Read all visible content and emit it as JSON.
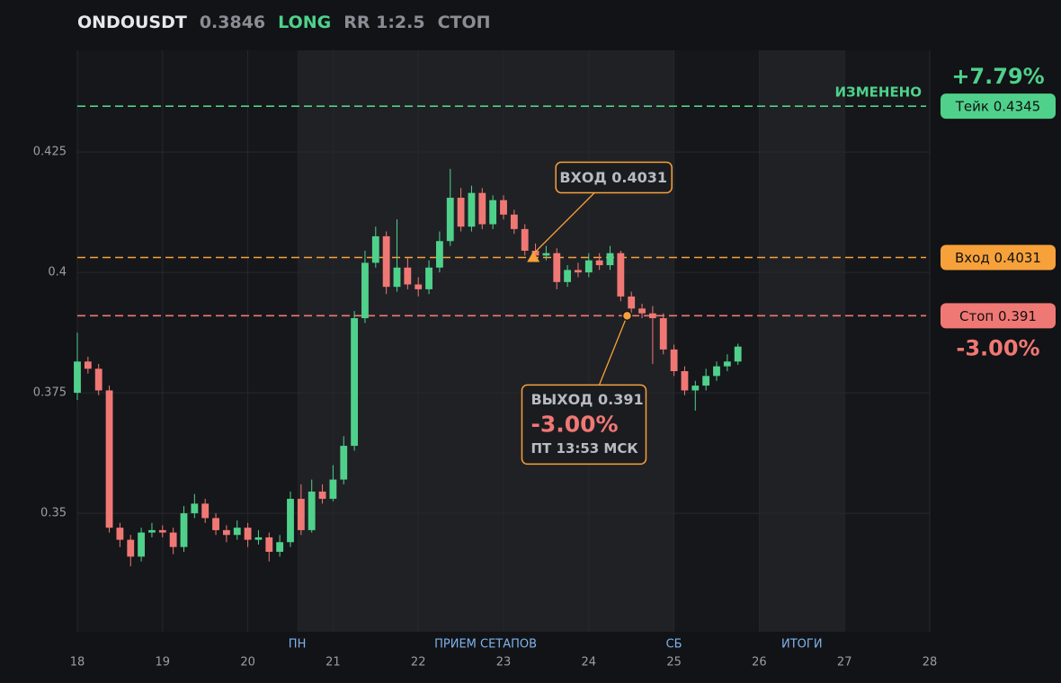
{
  "chart_data": {
    "type": "candlestick",
    "header": {
      "symbol": "ONDOUSDT",
      "price": "0.3846",
      "side": "LONG",
      "rr": "RR 1:2.5",
      "status": "СТОП"
    },
    "x": [
      18.0,
      18.125,
      18.25,
      18.375,
      18.5,
      18.625,
      18.75,
      18.875,
      19.0,
      19.125,
      19.25,
      19.375,
      19.5,
      19.625,
      19.75,
      19.875,
      20.0,
      20.125,
      20.25,
      20.375,
      20.5,
      20.625,
      20.75,
      20.875,
      21.0,
      21.125,
      21.25,
      21.375,
      21.5,
      21.625,
      21.75,
      21.875,
      22.0,
      22.125,
      22.25,
      22.375,
      22.5,
      22.625,
      22.75,
      22.875,
      23.0,
      23.125,
      23.25,
      23.375,
      23.5,
      23.625,
      23.75,
      23.875,
      24.0,
      24.125,
      24.25,
      24.375,
      24.5,
      24.625,
      24.75,
      24.875,
      25.0,
      25.125,
      25.25,
      25.375,
      25.5,
      25.625,
      25.75
    ],
    "open": [
      0.375,
      0.3815,
      0.38,
      0.3755,
      0.347,
      0.3445,
      0.341,
      0.346,
      0.3465,
      0.346,
      0.343,
      0.35,
      0.352,
      0.349,
      0.3465,
      0.3455,
      0.347,
      0.3445,
      0.345,
      0.342,
      0.344,
      0.353,
      0.3465,
      0.3545,
      0.353,
      0.357,
      0.364,
      0.3905,
      0.402,
      0.4075,
      0.397,
      0.401,
      0.3975,
      0.3965,
      0.401,
      0.4065,
      0.4155,
      0.4095,
      0.4165,
      0.41,
      0.415,
      0.412,
      0.409,
      0.4045,
      0.4035,
      0.404,
      0.398,
      0.4005,
      0.4,
      0.4025,
      0.4015,
      0.404,
      0.395,
      0.3925,
      0.3915,
      0.3905,
      0.384,
      0.3795,
      0.3755,
      0.3765,
      0.3785,
      0.3805,
      0.3815
    ],
    "high": [
      0.3875,
      0.3825,
      0.381,
      0.3765,
      0.348,
      0.3455,
      0.347,
      0.348,
      0.3475,
      0.347,
      0.3515,
      0.354,
      0.353,
      0.35,
      0.3475,
      0.3485,
      0.348,
      0.3465,
      0.346,
      0.3455,
      0.3545,
      0.356,
      0.357,
      0.356,
      0.36,
      0.366,
      0.392,
      0.4045,
      0.4095,
      0.4085,
      0.411,
      0.403,
      0.399,
      0.4025,
      0.4085,
      0.4215,
      0.4175,
      0.418,
      0.4175,
      0.416,
      0.416,
      0.413,
      0.41,
      0.406,
      0.4055,
      0.405,
      0.4015,
      0.402,
      0.404,
      0.404,
      0.4055,
      0.4045,
      0.396,
      0.3935,
      0.393,
      0.3915,
      0.385,
      0.3805,
      0.3775,
      0.38,
      0.3815,
      0.383,
      0.3852
    ],
    "low": [
      0.3735,
      0.379,
      0.3745,
      0.346,
      0.343,
      0.339,
      0.34,
      0.345,
      0.345,
      0.3415,
      0.342,
      0.349,
      0.348,
      0.3455,
      0.344,
      0.3445,
      0.343,
      0.3435,
      0.34,
      0.341,
      0.343,
      0.3455,
      0.346,
      0.352,
      0.3525,
      0.356,
      0.363,
      0.3895,
      0.401,
      0.3955,
      0.396,
      0.3965,
      0.395,
      0.3955,
      0.4,
      0.4055,
      0.4085,
      0.4085,
      0.409,
      0.409,
      0.411,
      0.408,
      0.4035,
      0.4025,
      0.4025,
      0.3965,
      0.397,
      0.399,
      0.399,
      0.4005,
      0.4005,
      0.394,
      0.3915,
      0.3905,
      0.381,
      0.383,
      0.3785,
      0.3745,
      0.3713,
      0.3755,
      0.3775,
      0.3795,
      0.3808
    ],
    "close": [
      0.3815,
      0.38,
      0.3755,
      0.347,
      0.3445,
      0.341,
      0.346,
      0.3465,
      0.346,
      0.343,
      0.35,
      0.352,
      0.349,
      0.3465,
      0.3455,
      0.347,
      0.3445,
      0.345,
      0.342,
      0.344,
      0.353,
      0.3465,
      0.3545,
      0.353,
      0.357,
      0.364,
      0.3905,
      0.402,
      0.4075,
      0.397,
      0.401,
      0.3975,
      0.3965,
      0.401,
      0.4065,
      0.4155,
      0.4095,
      0.4165,
      0.41,
      0.415,
      0.412,
      0.409,
      0.4045,
      0.4035,
      0.404,
      0.398,
      0.4005,
      0.4,
      0.4025,
      0.4015,
      0.404,
      0.395,
      0.3925,
      0.3915,
      0.3905,
      0.384,
      0.3795,
      0.3755,
      0.3765,
      0.3785,
      0.3805,
      0.3815,
      0.3846
    ],
    "up_color": "#4fd18b",
    "down_color": "#f07874",
    "xlim": [
      18,
      28
    ],
    "xticks": [
      18,
      19,
      20,
      21,
      22,
      23,
      24,
      25,
      26,
      27,
      28
    ],
    "ylim": [
      0.3254,
      0.4461
    ],
    "yticks": [
      0.35,
      0.375,
      0.4,
      0.425
    ],
    "grid": true,
    "bands": [
      {
        "from": 20.58,
        "to": 25,
        "label": "ПРИЕМ СЕТАПОВ"
      },
      {
        "from": 26,
        "to": 27,
        "label": "ИТОГИ"
      }
    ],
    "session_marks": [
      {
        "x": 20.58,
        "label": "ПН"
      },
      {
        "x": 25,
        "label": "СБ"
      }
    ],
    "levels": [
      {
        "label": "Тейк 0.4345",
        "value": 0.4345,
        "color": "#4fd18b",
        "note": "+7.79%",
        "note_position": "above",
        "tag": "ИЗМЕНЕНО"
      },
      {
        "label": "Вход 0.4031",
        "value": 0.4031,
        "color": "#f7a13b"
      },
      {
        "label": "Стоп 0.391",
        "value": 0.391,
        "color": "#f07874",
        "note": "-3.00%",
        "note_position": "below"
      }
    ],
    "entry": {
      "label": "ВХОД 0.4031",
      "x": 23.35,
      "y": 0.4031
    },
    "exit": {
      "label": "ВЫХОД 0.391",
      "pnl": "-3.00%",
      "time": "ПТ 13:53 МСК",
      "x": 24.45,
      "y": 0.391
    }
  }
}
